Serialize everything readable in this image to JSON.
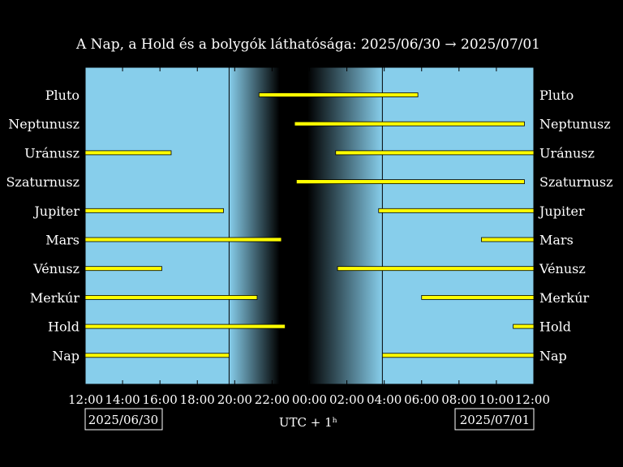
{
  "chart_data": {
    "type": "bar",
    "title": "A Nap, a Hold és a bolygók láthatósága: 2025/06/30 → 2025/07/01",
    "xlabel": "UTC + 1ʰ",
    "x_range_hours": [
      0,
      24
    ],
    "x_ticks": [
      "12:00",
      "14:00",
      "16:00",
      "18:00",
      "20:00",
      "22:00",
      "00:00",
      "02:00",
      "04:00",
      "06:00",
      "08:00",
      "10:00",
      "12:00"
    ],
    "date_left": "2025/06/30",
    "date_right": "2025/07/01",
    "twilight_hours": {
      "sunset": 7.7,
      "dark_start": 10.4,
      "dark_end": 11.9,
      "sunrise": 15.9
    },
    "bodies": [
      {
        "name": "Pluto",
        "intervals": [
          [
            9.3,
            17.8
          ]
        ]
      },
      {
        "name": "Neptunusz",
        "intervals": [
          [
            11.2,
            23.5
          ]
        ]
      },
      {
        "name": "Uránusz",
        "intervals": [
          [
            0,
            4.6
          ],
          [
            13.4,
            24
          ]
        ]
      },
      {
        "name": "Szaturnusz",
        "intervals": [
          [
            11.3,
            23.5
          ]
        ]
      },
      {
        "name": "Jupiter",
        "intervals": [
          [
            0,
            7.4
          ],
          [
            15.7,
            24
          ]
        ]
      },
      {
        "name": "Mars",
        "intervals": [
          [
            0,
            10.5
          ],
          [
            21.2,
            24
          ]
        ]
      },
      {
        "name": "Vénusz",
        "intervals": [
          [
            0,
            4.1
          ],
          [
            13.5,
            24
          ]
        ]
      },
      {
        "name": "Merkúr",
        "intervals": [
          [
            0,
            9.2
          ],
          [
            18.0,
            24
          ]
        ]
      },
      {
        "name": "Hold",
        "intervals": [
          [
            0,
            10.7
          ],
          [
            22.9,
            24
          ]
        ]
      },
      {
        "name": "Nap",
        "intervals": [
          [
            0,
            7.7
          ],
          [
            15.9,
            24
          ]
        ]
      }
    ]
  }
}
